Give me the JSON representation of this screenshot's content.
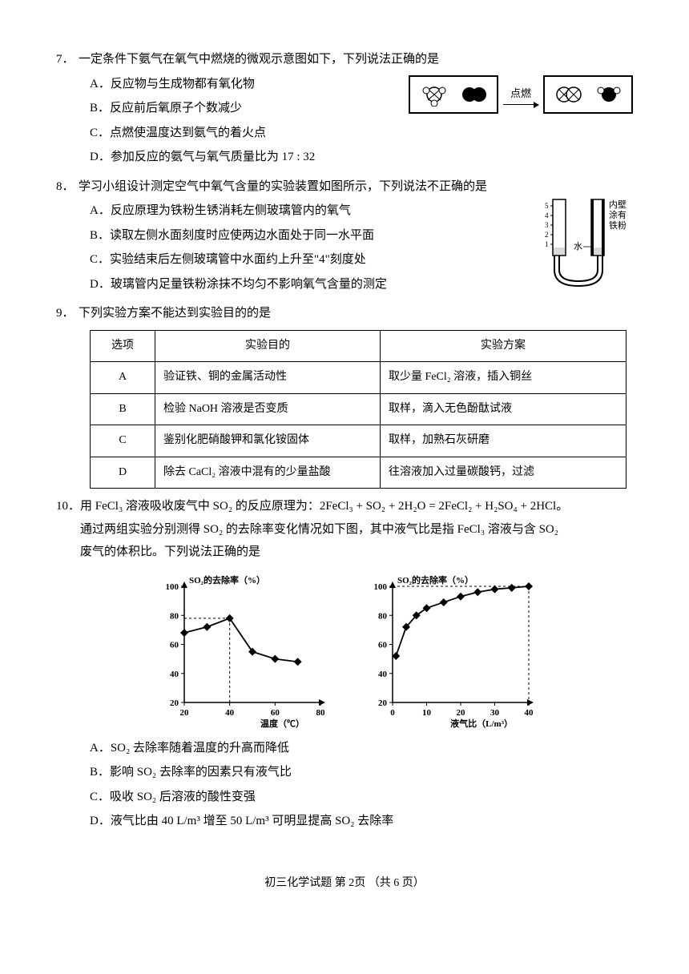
{
  "q7": {
    "num": "7．",
    "stem": "一定条件下氨气在氧气中燃烧的微观示意图如下，下列说法正确的是",
    "options": {
      "A": "A．反应物与生成物都有氧化物",
      "B": "B．反应前后氧原子个数减少",
      "C": "C．点燃使温度达到氨气的着火点",
      "D": "D．参加反应的氨气与氧气质量比为 17 : 32"
    },
    "arrow_label": "点燃"
  },
  "q8": {
    "num": "8．",
    "stem": "学习小组设计测定空气中氧气含量的实验装置如图所示，下列说法不正确的是",
    "options": {
      "A": "A．反应原理为铁粉生锈消耗左侧玻璃管内的氧气",
      "B": "B．读取左侧水面刻度时应使两边水面处于同一水平面",
      "C": "C．实验结束后左侧玻璃管中水面约上升至\"4\"刻度处",
      "D": "D．玻璃管内足量铁粉涂抹不均匀不影响氧气含量的测定"
    },
    "diagram_labels": {
      "scale": [
        "5",
        "4",
        "3",
        "2",
        "1"
      ],
      "inner": "内壁涂有铁粉",
      "water": "水"
    }
  },
  "q9": {
    "num": "9．",
    "stem": "下列实验方案不能达到实验目的的是",
    "table": {
      "headers": [
        "选项",
        "实验目的",
        "实验方案"
      ],
      "rows": [
        [
          "A",
          "验证铁、铜的金属活动性",
          "取少量 FeCl₂ 溶液，插入铜丝"
        ],
        [
          "B",
          "检验 NaOH 溶液是否变质",
          "取样，滴入无色酚酞试液"
        ],
        [
          "C",
          "鉴别化肥硝酸钾和氯化铵固体",
          "取样，加熟石灰研磨"
        ],
        [
          "D",
          "除去 CaCl₂ 溶液中混有的少量盐酸",
          "往溶液加入过量碳酸钙，过滤"
        ]
      ]
    }
  },
  "q10": {
    "num": "10．",
    "stem1": "用 FeCl₃ 溶液吸收废气中 SO₂ 的反应原理为：2FeCl₃ + SO₂ + 2H₂O = 2FeCl₂ + H₂SO₄ + 2HCl。",
    "stem2": "通过两组实验分别测得 SO₂ 的去除率变化情况如下图，其中液气比是指 FeCl₃ 溶液与含 SO₂",
    "stem3": "废气的体积比。下列说法正确的是",
    "options": {
      "A": "A．SO₂ 去除率随着温度的升高而降低",
      "B": "B．影响 SO₂ 去除率的因素只有液气比",
      "C": "C．吸收 SO₂ 后溶液的酸性变强",
      "D": "D．液气比由 40 L/m³ 增至 50 L/m³ 可明显提高 SO₂ 去除率"
    },
    "chart1": {
      "type": "line",
      "ylabel": "SO₂的去除率（%）",
      "xlabel": "温度（℃）",
      "ylim": [
        20,
        100
      ],
      "xlim": [
        20,
        80
      ],
      "yticks": [
        20,
        40,
        60,
        80,
        100
      ],
      "xticks": [
        20,
        40,
        60,
        80
      ],
      "points": [
        [
          20,
          68
        ],
        [
          30,
          72
        ],
        [
          40,
          78
        ],
        [
          50,
          55
        ],
        [
          60,
          50
        ],
        [
          70,
          48
        ]
      ],
      "dash_x": 40,
      "dash_y": 78,
      "line_color": "#000",
      "marker": "diamond",
      "marker_size": 5,
      "background_color": "#ffffff"
    },
    "chart2": {
      "type": "line",
      "ylabel": "SO₂的去除率（%）",
      "xlabel": "液气比（L/m³）",
      "ylim": [
        20,
        100
      ],
      "xlim": [
        0,
        40
      ],
      "yticks": [
        20,
        40,
        60,
        80,
        100
      ],
      "xticks": [
        0,
        10,
        20,
        30,
        40
      ],
      "points": [
        [
          1,
          52
        ],
        [
          4,
          72
        ],
        [
          7,
          80
        ],
        [
          10,
          85
        ],
        [
          15,
          89
        ],
        [
          20,
          93
        ],
        [
          25,
          96
        ],
        [
          30,
          98
        ],
        [
          35,
          99
        ],
        [
          40,
          100
        ]
      ],
      "dash_x": 40,
      "dash_y": 100,
      "line_color": "#000",
      "marker": "diamond",
      "marker_size": 5,
      "background_color": "#ffffff"
    }
  },
  "footer": "初三化学试题  第 2页  （共 6 页）"
}
